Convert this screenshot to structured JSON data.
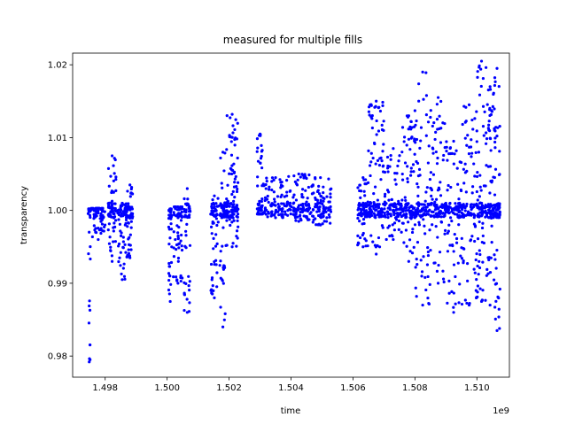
{
  "chart_data": {
    "type": "scatter",
    "title": "measured for multiple fills",
    "xlabel": "time",
    "ylabel": "transparency",
    "x_offset_label": "1e9",
    "xlim": [
      1.49695,
      1.51105
    ],
    "ylim": [
      0.9771,
      1.0216
    ],
    "x_ticks": [
      1.498,
      1.5,
      1.502,
      1.504,
      1.506,
      1.508,
      1.51
    ],
    "x_tick_labels": [
      "1.498",
      "1.500",
      "1.502",
      "1.504",
      "1.506",
      "1.508",
      "1.510"
    ],
    "y_ticks": [
      0.98,
      0.99,
      1.0,
      1.01,
      1.02
    ],
    "y_tick_labels": [
      "0.98",
      "0.99",
      "1.00",
      "1.01",
      "1.02"
    ],
    "grid": false,
    "series": [
      {
        "color": "#0000ff",
        "clusters": [
          {
            "x": [
              1.49745,
              1.49752
            ],
            "y": [
              0.9792,
              1.0002
            ],
            "n": 30
          },
          {
            "x": [
              1.49755,
              1.498
            ],
            "y": [
              0.996,
              1.0003
            ],
            "n": 60
          },
          {
            "x": [
              1.4981,
              1.49835
            ],
            "y": [
              0.993,
              1.0075
            ],
            "n": 70
          },
          {
            "x": [
              1.4984,
              1.4987
            ],
            "y": [
              0.9905,
              1.001
            ],
            "n": 60
          },
          {
            "x": [
              1.4987,
              1.4989
            ],
            "y": [
              0.9935,
              1.0035
            ],
            "n": 50
          },
          {
            "x": [
              1.50005,
              1.50015
            ],
            "y": [
              0.9875,
              1.0002
            ],
            "n": 40
          },
          {
            "x": [
              1.5002,
              1.5005
            ],
            "y": [
              0.99,
              1.0005
            ],
            "n": 60
          },
          {
            "x": [
              1.50055,
              1.50075
            ],
            "y": [
              0.986,
              1.003
            ],
            "n": 50
          },
          {
            "x": [
              1.5014,
              1.50165
            ],
            "y": [
              0.988,
              1.002
            ],
            "n": 60
          },
          {
            "x": [
              1.5017,
              1.5019
            ],
            "y": [
              0.984,
              1.008
            ],
            "n": 60
          },
          {
            "x": [
              1.5019,
              1.5023
            ],
            "y": [
              0.995,
              1.0132
            ],
            "n": 120
          },
          {
            "x": [
              1.5029,
              1.5031
            ],
            "y": [
              0.9995,
              1.0105
            ],
            "n": 50
          },
          {
            "x": [
              1.5031,
              1.5039
            ],
            "y": [
              0.999,
              1.0045
            ],
            "n": 90
          },
          {
            "x": [
              1.5039,
              1.5046
            ],
            "y": [
              0.9985,
              1.005
            ],
            "n": 90
          },
          {
            "x": [
              1.5046,
              1.5053
            ],
            "y": [
              0.998,
              1.0045
            ],
            "n": 90
          },
          {
            "x": [
              1.50615,
              1.5065
            ],
            "y": [
              0.995,
              1.0045
            ],
            "n": 80
          },
          {
            "x": [
              1.5065,
              1.507
            ],
            "y": [
              0.994,
              1.015
            ],
            "n": 120
          },
          {
            "x": [
              1.507,
              1.5076
            ],
            "y": [
              0.996,
              1.0085
            ],
            "n": 100
          },
          {
            "x": [
              1.5076,
              1.508
            ],
            "y": [
              0.993,
              1.013
            ],
            "n": 90
          },
          {
            "x": [
              1.508,
              1.5085
            ],
            "y": [
              0.987,
              1.019
            ],
            "n": 110
          },
          {
            "x": [
              1.5085,
              1.509
            ],
            "y": [
              0.99,
              1.0155
            ],
            "n": 110
          },
          {
            "x": [
              1.509,
              1.5095
            ],
            "y": [
              0.986,
              1.0095
            ],
            "n": 100
          },
          {
            "x": [
              1.5095,
              1.51
            ],
            "y": [
              0.987,
              1.0145
            ],
            "n": 100
          },
          {
            "x": [
              1.51,
              1.5103
            ],
            "y": [
              0.9875,
              1.0205
            ],
            "n": 90
          },
          {
            "x": [
              1.5103,
              1.51055
            ],
            "y": [
              0.987,
              1.017
            ],
            "n": 80
          },
          {
            "x": [
              1.51055,
              1.51075
            ],
            "y": [
              0.9835,
              1.0195
            ],
            "n": 80
          }
        ]
      }
    ]
  }
}
